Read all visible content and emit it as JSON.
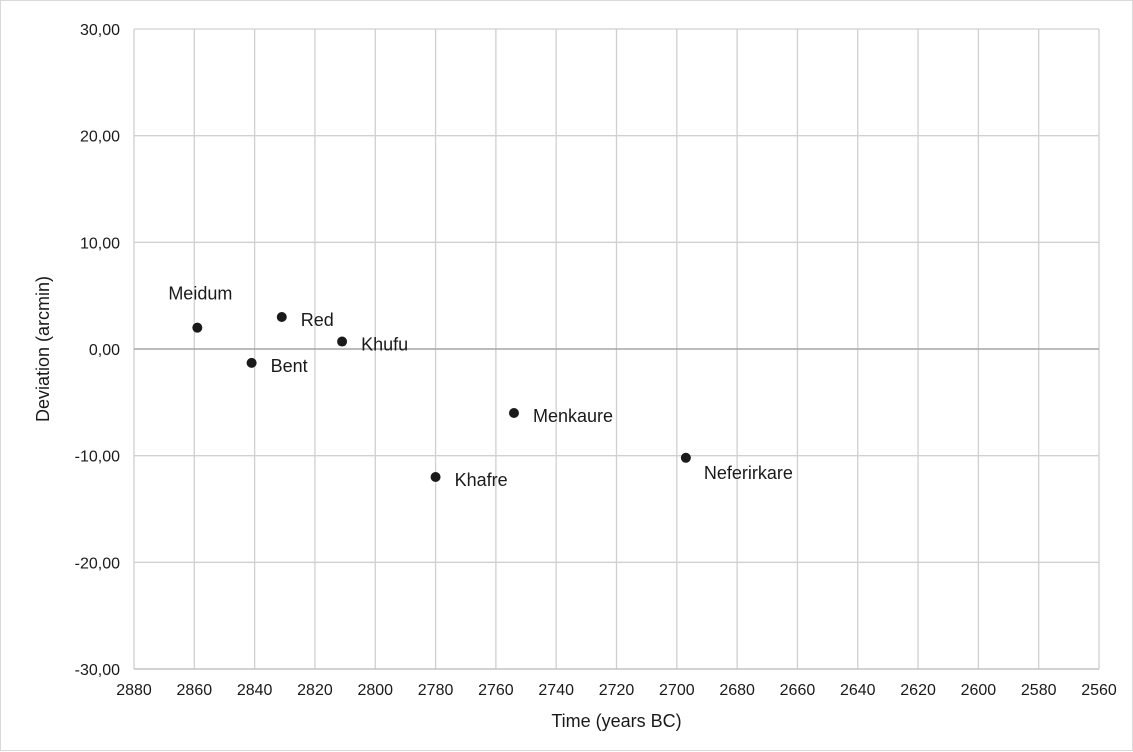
{
  "chart_data": {
    "type": "scatter",
    "xlabel": "Time (years BC)",
    "ylabel": "Deviation (arcmin)",
    "xlim": [
      2880,
      2560
    ],
    "ylim": [
      -30,
      30
    ],
    "x_reversed": true,
    "x_ticks": [
      2880,
      2860,
      2840,
      2820,
      2800,
      2780,
      2760,
      2740,
      2720,
      2700,
      2680,
      2660,
      2640,
      2620,
      2600,
      2580,
      2560
    ],
    "x_tick_labels": [
      "2880",
      "2860",
      "2840",
      "2820",
      "2800",
      "2780",
      "2760",
      "2740",
      "2720",
      "2700",
      "2680",
      "2660",
      "2640",
      "2620",
      "2600",
      "2580",
      "2560"
    ],
    "y_ticks": [
      30,
      20,
      10,
      0,
      -10,
      -20,
      -30
    ],
    "y_tick_labels": [
      "30,00",
      "20,00",
      "10,00",
      "0,00",
      "-10,00",
      "-20,00",
      "-30,00"
    ],
    "grid": true,
    "point_color": "#1a1a1a",
    "points": [
      {
        "label": "Meidum",
        "x": 2859,
        "y": 2.0,
        "label_pos": "above"
      },
      {
        "label": "Bent",
        "x": 2841,
        "y": -1.3,
        "label_pos": "right"
      },
      {
        "label": "Red",
        "x": 2831,
        "y": 3.0,
        "label_pos": "right"
      },
      {
        "label": "Khufu",
        "x": 2811,
        "y": 0.7,
        "label_pos": "right"
      },
      {
        "label": "Khafre",
        "x": 2780,
        "y": -12.0,
        "label_pos": "right"
      },
      {
        "label": "Menkaure",
        "x": 2754,
        "y": -6.0,
        "label_pos": "right"
      },
      {
        "label": "Neferirkare",
        "x": 2697,
        "y": -10.2,
        "label_pos": "below-right"
      }
    ]
  }
}
